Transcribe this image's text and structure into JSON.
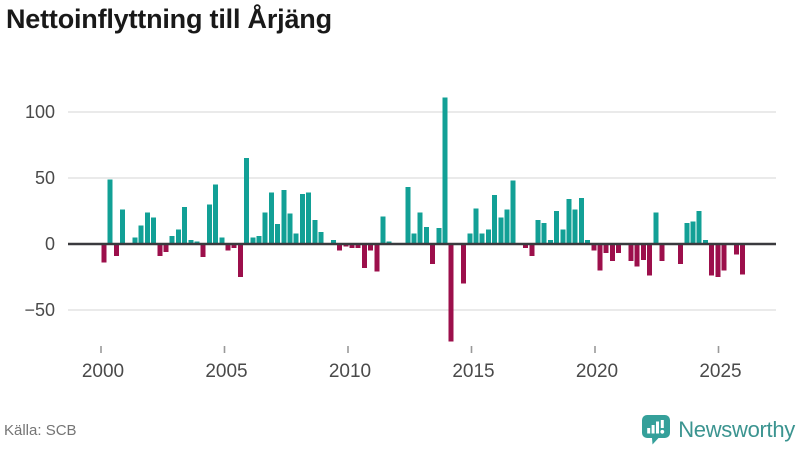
{
  "header": {
    "title": "Nettoinflyttning till Årjäng"
  },
  "footer": {
    "source": "Källa: SCB",
    "brand": "Newsworthy"
  },
  "colors": {
    "positive": "#12a096",
    "negative": "#9c0f4b",
    "gridline": "#e3e3e3",
    "zero_line": "#3a3a3e",
    "tick": "#999999",
    "axis_text": "#4a4a4a",
    "title_text": "#191919",
    "source_text": "#757575",
    "brand_teal": "#3b9490",
    "brand_icon": "#35a09a"
  },
  "chart_data": {
    "type": "bar",
    "title": "Nettoinflyttning till Årjäng",
    "frequency": "quarterly",
    "start": "2000-Q1",
    "end": "2025-Q4",
    "series": [
      {
        "name": "Nettoinflyttning",
        "values": [
          -14,
          49,
          -9,
          26,
          0,
          5,
          14,
          24,
          20,
          -9,
          -6,
          6,
          11,
          28,
          3,
          2,
          -10,
          30,
          45,
          5,
          -5,
          -3,
          -25,
          65,
          5,
          6,
          24,
          39,
          15,
          41,
          23,
          8,
          38,
          39,
          18,
          9,
          0,
          3,
          -5,
          -2,
          -3,
          -3,
          -18,
          -5,
          -21,
          21,
          2,
          0,
          0,
          43,
          8,
          24,
          13,
          -15,
          12,
          111,
          -74,
          0,
          -30,
          8,
          27,
          8,
          11,
          37,
          20,
          26,
          48,
          0,
          -3,
          -9,
          18,
          16,
          3,
          25,
          11,
          34,
          26,
          35,
          3,
          -5,
          -20,
          -7,
          -13,
          -7,
          0,
          -13,
          -17,
          -12,
          -24,
          24,
          -13,
          0,
          0,
          -15,
          16,
          17,
          25,
          3,
          -24,
          -25,
          -20,
          0,
          -8,
          -23
        ]
      }
    ],
    "xticks": [
      2000,
      2005,
      2010,
      2015,
      2020,
      2025
    ],
    "yticks": [
      -50,
      0,
      50,
      100
    ],
    "ytick_labels": [
      "−50",
      "0",
      "50",
      "100"
    ],
    "ylim": [
      -80,
      120
    ],
    "grid": true,
    "legend": false
  }
}
